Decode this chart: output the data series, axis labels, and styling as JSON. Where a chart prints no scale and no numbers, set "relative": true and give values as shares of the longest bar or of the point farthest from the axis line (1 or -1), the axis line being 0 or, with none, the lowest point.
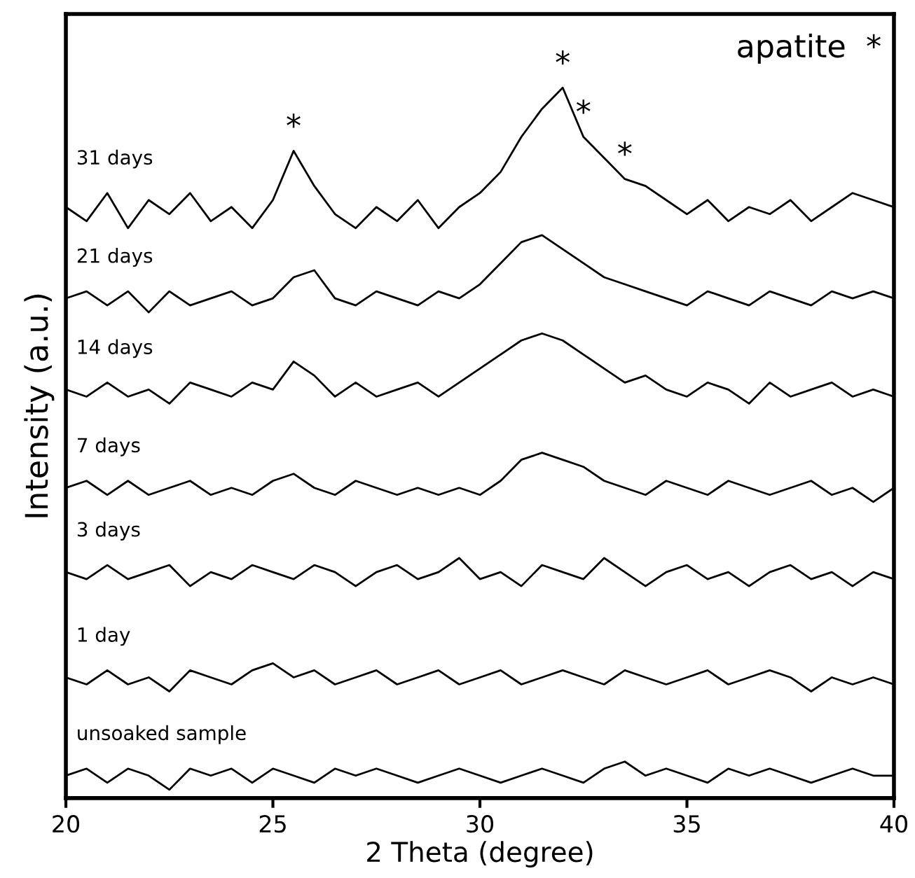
{
  "chart_data": {
    "type": "line",
    "relative": true,
    "xlabel": "2 Theta (degree)",
    "ylabel": "Intensity (a.u.)",
    "xlim": [
      20,
      40
    ],
    "xticks": [
      20,
      25,
      30,
      35,
      40
    ],
    "grid": false,
    "tick_labels": "x",
    "x": [
      20,
      20.5,
      21,
      21.5,
      22,
      22.5,
      23,
      23.5,
      24,
      24.5,
      25,
      25.5,
      26,
      26.5,
      27,
      27.5,
      28,
      28.5,
      29,
      29.5,
      30,
      30.5,
      31,
      31.5,
      32,
      32.5,
      33,
      33.5,
      34,
      34.5,
      35,
      35.5,
      36,
      36.5,
      37,
      37.5,
      38,
      38.5,
      39,
      39.5,
      40
    ],
    "series": [
      {
        "name": "31 days",
        "color": "#000000",
        "values": [
          0.83,
          0.81,
          0.85,
          0.8,
          0.84,
          0.82,
          0.85,
          0.81,
          0.83,
          0.8,
          0.84,
          0.91,
          0.86,
          0.82,
          0.8,
          0.83,
          0.81,
          0.84,
          0.8,
          0.83,
          0.85,
          0.88,
          0.93,
          0.97,
          1.0,
          0.93,
          0.9,
          0.87,
          0.86,
          0.84,
          0.82,
          0.84,
          0.81,
          0.83,
          0.82,
          0.84,
          0.81,
          0.83,
          0.85,
          0.84,
          0.83
        ]
      },
      {
        "name": "21 days",
        "color": "#000000",
        "values": [
          0.7,
          0.71,
          0.69,
          0.71,
          0.68,
          0.71,
          0.69,
          0.7,
          0.71,
          0.69,
          0.7,
          0.73,
          0.74,
          0.7,
          0.69,
          0.71,
          0.7,
          0.69,
          0.71,
          0.7,
          0.72,
          0.75,
          0.78,
          0.79,
          0.77,
          0.75,
          0.73,
          0.72,
          0.71,
          0.7,
          0.69,
          0.71,
          0.7,
          0.69,
          0.71,
          0.7,
          0.69,
          0.71,
          0.7,
          0.71,
          0.7
        ]
      },
      {
        "name": "14 days",
        "color": "#000000",
        "values": [
          0.57,
          0.56,
          0.58,
          0.56,
          0.57,
          0.55,
          0.58,
          0.57,
          0.56,
          0.58,
          0.57,
          0.61,
          0.59,
          0.56,
          0.58,
          0.56,
          0.57,
          0.58,
          0.56,
          0.58,
          0.6,
          0.62,
          0.64,
          0.65,
          0.64,
          0.62,
          0.6,
          0.58,
          0.59,
          0.57,
          0.56,
          0.58,
          0.57,
          0.55,
          0.58,
          0.56,
          0.57,
          0.58,
          0.56,
          0.57,
          0.56
        ]
      },
      {
        "name": "7 days",
        "color": "#000000",
        "values": [
          0.43,
          0.44,
          0.42,
          0.44,
          0.42,
          0.43,
          0.44,
          0.42,
          0.43,
          0.42,
          0.44,
          0.45,
          0.43,
          0.42,
          0.44,
          0.43,
          0.42,
          0.43,
          0.42,
          0.43,
          0.42,
          0.44,
          0.47,
          0.48,
          0.47,
          0.46,
          0.44,
          0.43,
          0.42,
          0.44,
          0.43,
          0.42,
          0.44,
          0.43,
          0.42,
          0.43,
          0.44,
          0.42,
          0.43,
          0.41,
          0.43
        ]
      },
      {
        "name": "3 days",
        "color": "#000000",
        "values": [
          0.31,
          0.3,
          0.32,
          0.3,
          0.31,
          0.32,
          0.29,
          0.31,
          0.3,
          0.32,
          0.31,
          0.3,
          0.32,
          0.31,
          0.29,
          0.31,
          0.32,
          0.3,
          0.31,
          0.33,
          0.3,
          0.31,
          0.29,
          0.32,
          0.31,
          0.3,
          0.33,
          0.31,
          0.29,
          0.31,
          0.32,
          0.3,
          0.31,
          0.29,
          0.31,
          0.32,
          0.3,
          0.31,
          0.29,
          0.31,
          0.3
        ]
      },
      {
        "name": "1 day",
        "color": "#000000",
        "values": [
          0.16,
          0.15,
          0.17,
          0.15,
          0.16,
          0.14,
          0.17,
          0.16,
          0.15,
          0.17,
          0.18,
          0.16,
          0.17,
          0.15,
          0.16,
          0.17,
          0.15,
          0.16,
          0.17,
          0.15,
          0.16,
          0.17,
          0.15,
          0.16,
          0.17,
          0.16,
          0.15,
          0.17,
          0.16,
          0.15,
          0.16,
          0.17,
          0.15,
          0.16,
          0.17,
          0.16,
          0.14,
          0.16,
          0.15,
          0.16,
          0.15
        ]
      },
      {
        "name": "unsoaked sample",
        "color": "#000000",
        "values": [
          0.02,
          0.03,
          0.01,
          0.03,
          0.02,
          0.0,
          0.03,
          0.02,
          0.03,
          0.01,
          0.03,
          0.02,
          0.01,
          0.03,
          0.02,
          0.03,
          0.02,
          0.01,
          0.02,
          0.03,
          0.02,
          0.01,
          0.02,
          0.03,
          0.02,
          0.01,
          0.03,
          0.04,
          0.02,
          0.03,
          0.02,
          0.01,
          0.03,
          0.02,
          0.03,
          0.02,
          0.01,
          0.02,
          0.03,
          0.02,
          0.02
        ]
      }
    ],
    "annotations": [
      {
        "text": "*",
        "x": 25.5,
        "y": 0.91
      },
      {
        "text": "*",
        "x": 32,
        "y": 1.0
      },
      {
        "text": "*",
        "x": 32.5,
        "y": 0.93
      },
      {
        "text": "*",
        "x": 33.5,
        "y": 0.87
      },
      "apatite  *"
    ]
  }
}
